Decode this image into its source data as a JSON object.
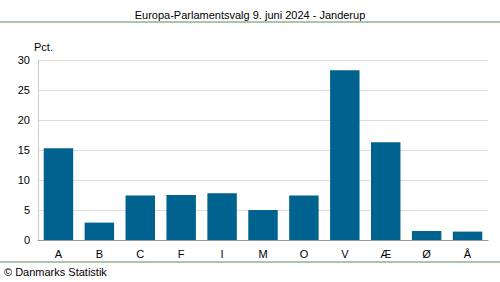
{
  "chart_data": {
    "type": "bar",
    "title": "Europa-Parlamentsvalg 9. juni 2024 - Janderup",
    "y_label": "Pct.",
    "source": "© Danmarks Statistik",
    "categories": [
      "A",
      "B",
      "C",
      "F",
      "I",
      "M",
      "O",
      "V",
      "Æ",
      "Ø",
      "Å"
    ],
    "values": [
      15.3,
      2.9,
      7.4,
      7.5,
      7.8,
      5.0,
      7.4,
      28.3,
      16.3,
      1.5,
      1.4
    ],
    "color": "#00628f",
    "ylim": [
      0,
      30
    ],
    "yticks": [
      0,
      5,
      10,
      15,
      20,
      25,
      30
    ],
    "grid": true
  }
}
